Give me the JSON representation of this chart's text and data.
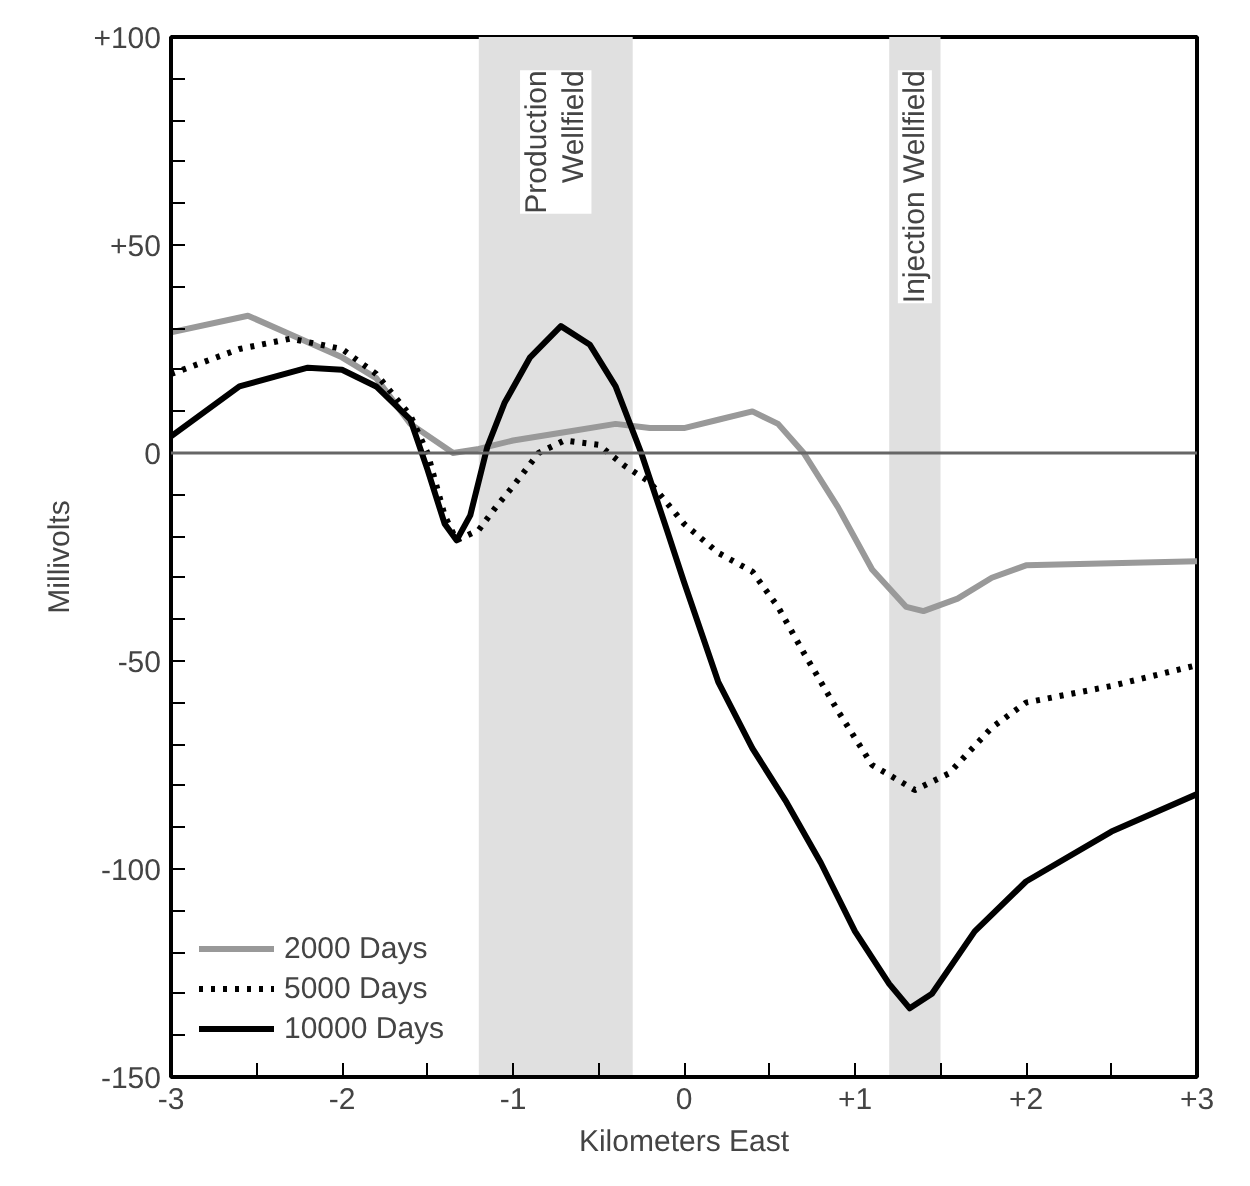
{
  "chart_data": {
    "type": "line",
    "xlabel": "Kilometers East",
    "ylabel": "Millivolts",
    "xlim": [
      -3,
      3
    ],
    "ylim": [
      -150,
      100
    ],
    "xticks": [
      {
        "value": -3,
        "label": "-3"
      },
      {
        "value": -2.5,
        "label": null
      },
      {
        "value": -2,
        "label": "-2"
      },
      {
        "value": -1.5,
        "label": null
      },
      {
        "value": -1,
        "label": "-1"
      },
      {
        "value": -0.5,
        "label": null
      },
      {
        "value": 0,
        "label": "0"
      },
      {
        "value": 0.5,
        "label": null
      },
      {
        "value": 1,
        "label": "+1"
      },
      {
        "value": 1.5,
        "label": null
      },
      {
        "value": 2,
        "label": "+2"
      },
      {
        "value": 2.5,
        "label": null
      },
      {
        "value": 3,
        "label": "+3"
      }
    ],
    "yticks": [
      {
        "value": -150,
        "label": "-150"
      },
      {
        "value": -140,
        "label": null
      },
      {
        "value": -130,
        "label": null
      },
      {
        "value": -120,
        "label": null
      },
      {
        "value": -110,
        "label": null
      },
      {
        "value": -100,
        "label": "-100"
      },
      {
        "value": -90,
        "label": null
      },
      {
        "value": -80,
        "label": null
      },
      {
        "value": -70,
        "label": null
      },
      {
        "value": -60,
        "label": null
      },
      {
        "value": -50,
        "label": "-50"
      },
      {
        "value": -40,
        "label": null
      },
      {
        "value": -30,
        "label": null
      },
      {
        "value": -20,
        "label": null
      },
      {
        "value": -10,
        "label": null
      },
      {
        "value": 0,
        "label": "0"
      },
      {
        "value": 10,
        "label": null
      },
      {
        "value": 20,
        "label": null
      },
      {
        "value": 30,
        "label": null
      },
      {
        "value": 40,
        "label": null
      },
      {
        "value": 50,
        "label": "+50"
      },
      {
        "value": 60,
        "label": null
      },
      {
        "value": 70,
        "label": null
      },
      {
        "value": 80,
        "label": null
      },
      {
        "value": 90,
        "label": null
      },
      {
        "value": 100,
        "label": "+100"
      }
    ],
    "grid": false,
    "legend": "bottom left",
    "ref_lines": [
      {
        "axis": "y",
        "value": 0,
        "label": null,
        "color": "#666666"
      }
    ],
    "bands": [
      {
        "axis": "x",
        "from": -1.2,
        "to": -0.3,
        "label": "Production\nWellfield",
        "color": "#e0e0e0"
      },
      {
        "axis": "x",
        "from": 1.2,
        "to": 1.5,
        "label": "Injection Wellfield",
        "color": "#e0e0e0"
      }
    ],
    "series": [
      {
        "name": "2000 Days",
        "color": "#999999",
        "line_style": "solid",
        "x": [
          -3,
          -2.55,
          -2,
          -1.8,
          -1.6,
          -1.35,
          -1.2,
          -1,
          -0.7,
          -0.4,
          -0.2,
          0,
          0.2,
          0.4,
          0.55,
          0.7,
          0.9,
          1.1,
          1.3,
          1.4,
          1.6,
          1.8,
          2,
          2.5,
          3
        ],
        "values": [
          29,
          33,
          23,
          18,
          7,
          0,
          1,
          3,
          5,
          7,
          6,
          6,
          8,
          10,
          7,
          0,
          -13,
          -28,
          -37,
          -38,
          -35,
          -30,
          -27,
          -26.5,
          -26
        ]
      },
      {
        "name": "5000 Days",
        "color": "#000000",
        "line_style": "dotted",
        "x": [
          -3,
          -2.6,
          -2.3,
          -2,
          -1.8,
          -1.6,
          -1.5,
          -1.4,
          -1.33,
          -1.2,
          -1.1,
          -1,
          -0.85,
          -0.7,
          -0.5,
          -0.35,
          -0.2,
          0,
          0.2,
          0.4,
          0.55,
          0.7,
          0.9,
          1.1,
          1.35,
          1.55,
          1.8,
          2,
          2.5,
          3
        ],
        "values": [
          19,
          25,
          27.5,
          25,
          19,
          9,
          0,
          -15,
          -21,
          -18.5,
          -13,
          -8,
          0,
          3,
          2,
          -3,
          -7,
          -17,
          -24,
          -28.5,
          -37,
          -48,
          -62,
          -75,
          -81,
          -77,
          -66,
          -60,
          -56,
          -51
        ]
      },
      {
        "name": "10000 Days",
        "color": "#000000",
        "line_style": "solid",
        "x": [
          -3,
          -2.6,
          -2.2,
          -2,
          -1.8,
          -1.6,
          -1.5,
          -1.4,
          -1.33,
          -1.25,
          -1.15,
          -1.05,
          -0.9,
          -0.72,
          -0.55,
          -0.4,
          -0.25,
          -0.1,
          0,
          0.2,
          0.4,
          0.6,
          0.8,
          1,
          1.2,
          1.32,
          1.45,
          1.7,
          2,
          2.5,
          3
        ],
        "values": [
          4,
          16,
          20.5,
          20,
          16,
          8,
          -4,
          -17,
          -21,
          -15,
          1.5,
          12,
          23,
          30.5,
          26,
          16,
          0,
          -18.5,
          -31,
          -55,
          -71,
          -84,
          -98.5,
          -115,
          -127.6,
          -133.5,
          -130,
          -115,
          -103,
          -91,
          -82
        ]
      }
    ]
  }
}
